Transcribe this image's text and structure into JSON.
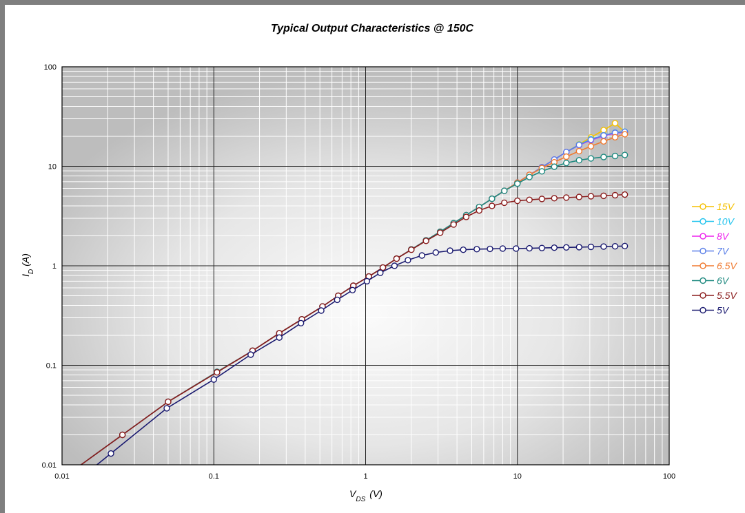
{
  "chart_data": {
    "type": "line",
    "title": "Typical Output Characteristics @ 150C",
    "xlabel": {
      "main": "V",
      "sub": "DS",
      "unit": "(V)"
    },
    "ylabel": {
      "main": "I",
      "sub": "D",
      "unit": "(A)"
    },
    "x_scale": "log",
    "y_scale": "log",
    "xlim": [
      0.01,
      100
    ],
    "ylim": [
      0.01,
      100
    ],
    "x_ticks": [
      0.01,
      0.1,
      1,
      10,
      100
    ],
    "x_tick_labels": [
      "0.01",
      "0.1",
      "1",
      "10",
      "100"
    ],
    "y_ticks": [
      0.01,
      0.1,
      1,
      10,
      100
    ],
    "y_tick_labels": [
      "0.01",
      "0.1",
      "1",
      "10",
      "100"
    ],
    "grid": true,
    "legend_position": "right",
    "background": "gray-gradient",
    "series": [
      {
        "name": "15V",
        "color": "#f5c000",
        "x": [
          0.025,
          0.05,
          0.105,
          0.18,
          0.27,
          0.38,
          0.52,
          0.66,
          0.83,
          1.05,
          1.3,
          1.6,
          2.0,
          2.5,
          3.1,
          3.8,
          4.6,
          5.6,
          6.8,
          8.2,
          10,
          12,
          14.5,
          17.5,
          21,
          25.5,
          30.5,
          37,
          44,
          51
        ],
        "y": [
          0.02,
          0.043,
          0.086,
          0.14,
          0.21,
          0.29,
          0.39,
          0.5,
          0.63,
          0.78,
          0.96,
          1.18,
          1.46,
          1.8,
          2.2,
          2.68,
          3.23,
          3.9,
          4.72,
          5.67,
          6.85,
          8.2,
          9.8,
          11.7,
          13.9,
          16.6,
          19.5,
          23.1,
          27.1,
          22
        ]
      },
      {
        "name": "10V",
        "color": "#22c4ee",
        "x": [
          0.025,
          0.05,
          0.105,
          0.18,
          0.27,
          0.38,
          0.52,
          0.66,
          0.83,
          1.05,
          1.3,
          1.6,
          2.0,
          2.5,
          3.1,
          3.8,
          4.6,
          5.6,
          6.8,
          8.2,
          10,
          12,
          14.5,
          17.5,
          21,
          25.5,
          30.5,
          37,
          44,
          51
        ],
        "y": [
          0.02,
          0.043,
          0.086,
          0.14,
          0.21,
          0.29,
          0.39,
          0.5,
          0.63,
          0.78,
          0.96,
          1.18,
          1.46,
          1.8,
          2.2,
          2.68,
          3.23,
          3.9,
          4.72,
          5.67,
          6.85,
          8.2,
          9.8,
          11.7,
          13.9,
          16.5,
          18.7,
          20.5,
          21.8,
          22.3
        ]
      },
      {
        "name": "8V",
        "color": "#ee22ee",
        "x": [
          0.025,
          0.05,
          0.105,
          0.18,
          0.27,
          0.38,
          0.52,
          0.66,
          0.83,
          1.05,
          1.3,
          1.6,
          2.0,
          2.5,
          3.1,
          3.8,
          4.6,
          5.6,
          6.8,
          8.2,
          10,
          12,
          14.5,
          17.5,
          21,
          25.5,
          30.5,
          37,
          44,
          51
        ],
        "y": [
          0.02,
          0.043,
          0.086,
          0.14,
          0.21,
          0.29,
          0.39,
          0.5,
          0.63,
          0.78,
          0.96,
          1.18,
          1.46,
          1.8,
          2.2,
          2.68,
          3.23,
          3.9,
          4.72,
          5.67,
          6.85,
          8.2,
          9.8,
          11.7,
          13.9,
          16.3,
          18.3,
          20.2,
          21.5,
          22.0
        ]
      },
      {
        "name": "7V",
        "color": "#5a7fe8",
        "x": [
          0.025,
          0.05,
          0.105,
          0.18,
          0.27,
          0.38,
          0.52,
          0.66,
          0.83,
          1.05,
          1.3,
          1.6,
          2.0,
          2.5,
          3.1,
          3.8,
          4.6,
          5.6,
          6.8,
          8.2,
          10,
          12,
          14.5,
          17.5,
          21,
          25.5,
          30.5,
          37,
          44,
          51
        ],
        "y": [
          0.02,
          0.043,
          0.086,
          0.14,
          0.21,
          0.29,
          0.39,
          0.5,
          0.63,
          0.78,
          0.96,
          1.18,
          1.46,
          1.8,
          2.2,
          2.68,
          3.23,
          3.9,
          4.72,
          5.67,
          6.85,
          8.2,
          9.8,
          11.7,
          13.9,
          16.4,
          18.5,
          20.4,
          21.7,
          22.2
        ]
      },
      {
        "name": "6.5V",
        "color": "#f07a30",
        "x": [
          0.025,
          0.05,
          0.105,
          0.18,
          0.27,
          0.38,
          0.52,
          0.66,
          0.83,
          1.05,
          1.3,
          1.6,
          2.0,
          2.5,
          3.1,
          3.8,
          4.6,
          5.6,
          6.8,
          8.2,
          10,
          12,
          14.5,
          17.5,
          21,
          25.5,
          30.5,
          37,
          44,
          51
        ],
        "y": [
          0.02,
          0.043,
          0.086,
          0.14,
          0.21,
          0.29,
          0.39,
          0.5,
          0.63,
          0.78,
          0.96,
          1.18,
          1.46,
          1.8,
          2.2,
          2.68,
          3.23,
          3.9,
          4.72,
          5.67,
          6.85,
          8.2,
          9.6,
          11.0,
          12.5,
          14.2,
          15.9,
          17.8,
          19.6,
          21.0
        ]
      },
      {
        "name": "6V",
        "color": "#1f8a80",
        "x": [
          0.025,
          0.05,
          0.105,
          0.18,
          0.27,
          0.38,
          0.52,
          0.66,
          0.83,
          1.05,
          1.3,
          1.6,
          2.0,
          2.5,
          3.1,
          3.8,
          4.6,
          5.6,
          6.8,
          8.2,
          10,
          12,
          14.5,
          17.5,
          21,
          25.5,
          30.5,
          37,
          44,
          51
        ],
        "y": [
          0.02,
          0.043,
          0.086,
          0.14,
          0.21,
          0.29,
          0.39,
          0.5,
          0.63,
          0.78,
          0.96,
          1.18,
          1.46,
          1.8,
          2.2,
          2.68,
          3.23,
          3.9,
          4.72,
          5.67,
          6.7,
          7.8,
          8.9,
          9.9,
          10.8,
          11.5,
          12.0,
          12.4,
          12.7,
          13.0
        ]
      },
      {
        "name": "5.5V",
        "color": "#8a1c1c",
        "x": [
          0.025,
          0.05,
          0.105,
          0.18,
          0.27,
          0.38,
          0.52,
          0.66,
          0.83,
          1.05,
          1.3,
          1.6,
          2.0,
          2.5,
          3.1,
          3.8,
          4.6,
          5.6,
          6.8,
          8.2,
          10,
          12,
          14.5,
          17.5,
          21,
          25.5,
          30.5,
          37,
          44,
          51
        ],
        "y": [
          0.02,
          0.043,
          0.085,
          0.14,
          0.21,
          0.29,
          0.39,
          0.5,
          0.63,
          0.78,
          0.96,
          1.18,
          1.45,
          1.78,
          2.15,
          2.6,
          3.1,
          3.6,
          4.0,
          4.3,
          4.5,
          4.6,
          4.7,
          4.78,
          4.85,
          4.92,
          5.0,
          5.05,
          5.12,
          5.2
        ]
      },
      {
        "name": "5V",
        "color": "#1a1a70",
        "x": [
          0.021,
          0.049,
          0.1,
          0.175,
          0.27,
          0.375,
          0.51,
          0.65,
          0.82,
          1.02,
          1.25,
          1.55,
          1.9,
          2.35,
          2.9,
          3.6,
          4.4,
          5.4,
          6.6,
          8.0,
          9.8,
          12,
          14.5,
          17.5,
          21,
          25.5,
          30.5,
          37,
          44,
          51
        ],
        "y": [
          0.013,
          0.037,
          0.072,
          0.128,
          0.19,
          0.265,
          0.355,
          0.455,
          0.57,
          0.7,
          0.85,
          1.0,
          1.14,
          1.27,
          1.36,
          1.42,
          1.45,
          1.47,
          1.48,
          1.49,
          1.49,
          1.5,
          1.51,
          1.52,
          1.53,
          1.54,
          1.55,
          1.56,
          1.57,
          1.58
        ]
      }
    ]
  }
}
